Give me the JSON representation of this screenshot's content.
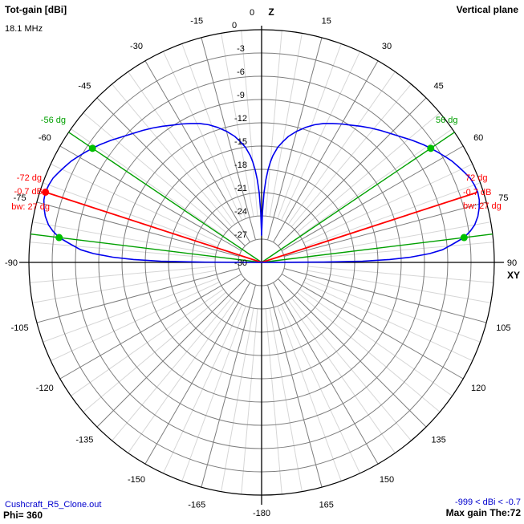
{
  "header": {
    "title": "Tot-gain [dBi]",
    "frequency": "18.1 MHz",
    "plane": "Vertical plane"
  },
  "footer": {
    "file_name": "Cushcraft_R5_Clone.out",
    "phi_label": "Phi= 360",
    "range_label": "-999 < dBi < -0.7",
    "max_gain_label": "Max gain The:72"
  },
  "colors": {
    "pattern_curve": "#0000ee",
    "max_gain_line": "#ff0000",
    "beamwidth_line": "#00a000",
    "marker_green": "#00c000",
    "marker_red": "#ff0000",
    "grid_major": "#7d7d7d",
    "grid_minor": "#d6d6d6",
    "outer_ring": "#000000",
    "axis": "#000000",
    "text_blue": "#0000cd"
  },
  "chart_data": {
    "type": "line",
    "projection": "polar",
    "title": "Tot-gain [dBi] vertical plane radiation pattern",
    "frequency_label": "18.1 MHz",
    "radial_unit": "dBi",
    "radial_range": [
      -30,
      0
    ],
    "ring_step_db": 3,
    "radial_ticks": [
      "0",
      "-3",
      "-6",
      "-9",
      "-12",
      "-15",
      "-18",
      "-21",
      "-24",
      "-27",
      "-30"
    ],
    "spoke_minor_step_deg": 5,
    "spoke_major_step_deg": 15,
    "axis_labels": {
      "top": "Z",
      "right": "XY",
      "top_zero": "0"
    },
    "angle_labels": [
      {
        "deg": 0,
        "text": "0"
      },
      {
        "deg": 15,
        "text": "15"
      },
      {
        "deg": 30,
        "text": "30"
      },
      {
        "deg": 45,
        "text": "45"
      },
      {
        "deg": 60,
        "text": "60"
      },
      {
        "deg": 75,
        "text": "75"
      },
      {
        "deg": 90,
        "text": "90"
      },
      {
        "deg": 105,
        "text": "105"
      },
      {
        "deg": 120,
        "text": "120"
      },
      {
        "deg": 135,
        "text": "135"
      },
      {
        "deg": 150,
        "text": "150"
      },
      {
        "deg": 165,
        "text": "165"
      },
      {
        "deg": 180,
        "text": "-180"
      },
      {
        "deg": -15,
        "text": "-15"
      },
      {
        "deg": -30,
        "text": "-30"
      },
      {
        "deg": -45,
        "text": "-45"
      },
      {
        "deg": -60,
        "text": "-60"
      },
      {
        "deg": -75,
        "text": "-75"
      },
      {
        "deg": -90,
        "text": "-90"
      },
      {
        "deg": -105,
        "text": "-105"
      },
      {
        "deg": -120,
        "text": "-120"
      },
      {
        "deg": -135,
        "text": "-135"
      },
      {
        "deg": -150,
        "text": "-150"
      },
      {
        "deg": -165,
        "text": "-165"
      }
    ],
    "series": [
      {
        "name": "Tot-gain",
        "symmetric": true,
        "half_points_theta_deg_db": [
          [
            0,
            -26.5
          ],
          [
            1,
            -23.5
          ],
          [
            2,
            -21.0
          ],
          [
            3,
            -19.3
          ],
          [
            4,
            -18.0
          ],
          [
            5,
            -17.0
          ],
          [
            6,
            -16.2
          ],
          [
            8,
            -15.0
          ],
          [
            10,
            -14.2
          ],
          [
            12,
            -13.4
          ],
          [
            15,
            -12.5
          ],
          [
            18,
            -11.7
          ],
          [
            21,
            -11.0
          ],
          [
            24,
            -10.4
          ],
          [
            27,
            -9.9
          ],
          [
            30,
            -9.4
          ],
          [
            33,
            -8.9
          ],
          [
            36,
            -8.3
          ],
          [
            39,
            -7.7
          ],
          [
            42,
            -7.1
          ],
          [
            45,
            -6.5
          ],
          [
            48,
            -5.8
          ],
          [
            51,
            -5.0
          ],
          [
            54,
            -4.2
          ],
          [
            56,
            -3.7
          ],
          [
            58,
            -3.2
          ],
          [
            60,
            -2.7
          ],
          [
            62,
            -2.2
          ],
          [
            64,
            -1.8
          ],
          [
            66,
            -1.4
          ],
          [
            68,
            -1.0
          ],
          [
            70,
            -0.8
          ],
          [
            72,
            -0.7
          ],
          [
            74,
            -0.8
          ],
          [
            76,
            -1.1
          ],
          [
            78,
            -1.5
          ],
          [
            80,
            -2.1
          ],
          [
            81.5,
            -2.8
          ],
          [
            83,
            -3.7
          ],
          [
            84.5,
            -5.2
          ],
          [
            86,
            -6.6
          ],
          [
            87,
            -8.3
          ],
          [
            88,
            -10.8
          ],
          [
            88.7,
            -13.5
          ],
          [
            89.3,
            -17.0
          ],
          [
            89.7,
            -22.0
          ],
          [
            90,
            -30.0
          ]
        ]
      }
    ],
    "annotations": {
      "max_gain_dbi": -0.7,
      "max_gain_theta_deg": 72,
      "beamwidth_deg": 27,
      "half_power_theta_deg": [
        56,
        83
      ],
      "half_power_level_db": -3.7,
      "left": {
        "hp_label": "-56 dg",
        "angle_label": "-72 dg",
        "gain_label": "-0.7 dB",
        "bw_label": "bw: 27 dg"
      },
      "right": {
        "hp_label": "56 dg",
        "angle_label": "72 dg",
        "gain_label": "-0.7 dB",
        "bw_label": "bw: 27 dg"
      }
    }
  }
}
